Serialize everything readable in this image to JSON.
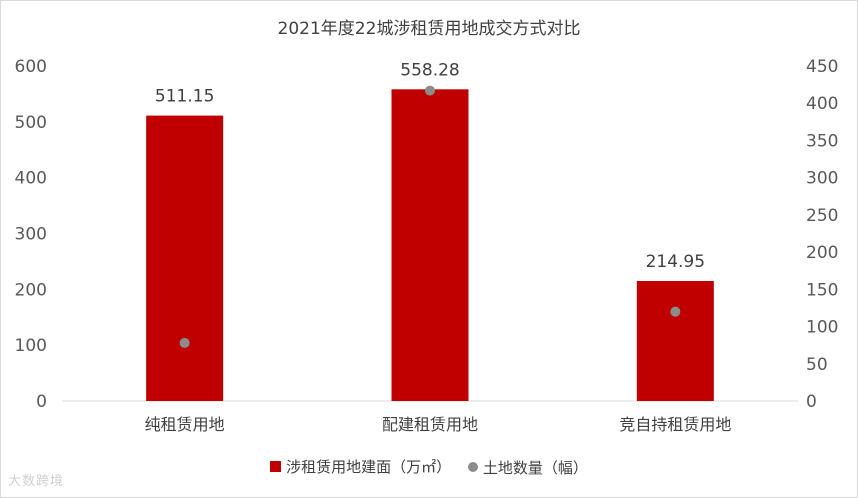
{
  "chart_data": {
    "type": "bar",
    "title": "2021年度22城涉租赁用地成交方式对比",
    "categories": [
      "纯租赁用地",
      "配建租赁用地",
      "竞自持租赁用地"
    ],
    "series": [
      {
        "name": "涉租赁用地建面（万㎡）",
        "type": "bar",
        "axis": "left",
        "values": [
          511.15,
          558.28,
          214.95
        ],
        "color": "#c00000"
      },
      {
        "name": "土地数量（幅）",
        "type": "scatter",
        "axis": "right",
        "values": [
          78,
          417,
          120
        ],
        "color": "#8c8c8c"
      }
    ],
    "data_labels": [
      "511.15",
      "558.28",
      "214.95"
    ],
    "y_left": {
      "ylim": [
        0,
        600
      ],
      "ticks": [
        "0",
        "100",
        "200",
        "300",
        "400",
        "500",
        "600"
      ]
    },
    "y_right": {
      "ylim": [
        0,
        450
      ],
      "ticks": [
        "0",
        "50",
        "100",
        "150",
        "200",
        "250",
        "300",
        "350",
        "400",
        "450"
      ]
    },
    "grid": false,
    "legend_position": "bottom"
  },
  "watermark": "大数跨境"
}
